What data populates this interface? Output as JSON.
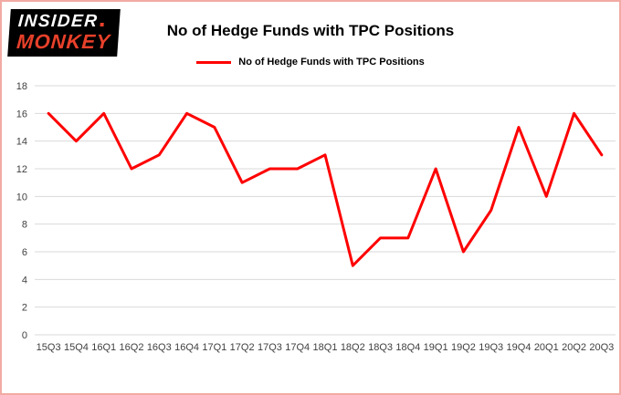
{
  "logo": {
    "line1": "INSIDER",
    "line2": "MONKEY"
  },
  "header": {
    "title": "No of Hedge Funds with TPC Positions"
  },
  "legend": {
    "label": "No of Hedge Funds with TPC Positions"
  },
  "colors": {
    "line": "#ff0000",
    "grid": "#d9d9d9",
    "axis_text": "#404040",
    "page_border": "#f2aaa4",
    "logo_bg": "#000000",
    "logo_accent": "#e8402a"
  },
  "chart_data": {
    "type": "line",
    "title": "No of Hedge Funds with TPC Positions",
    "categories": [
      "15Q3",
      "15Q4",
      "16Q1",
      "16Q2",
      "16Q3",
      "16Q4",
      "17Q1",
      "17Q2",
      "17Q3",
      "17Q4",
      "18Q1",
      "18Q2",
      "18Q3",
      "18Q4",
      "19Q1",
      "19Q2",
      "19Q3",
      "19Q4",
      "20Q1",
      "20Q2",
      "20Q3"
    ],
    "series": [
      {
        "name": "No of Hedge Funds with TPC Positions",
        "color": "#ff0000",
        "values": [
          16,
          14,
          16,
          12,
          13,
          16,
          15,
          11,
          12,
          12,
          13,
          5,
          7,
          7,
          12,
          6,
          9,
          15,
          10,
          16,
          13
        ]
      }
    ],
    "xlabel": "",
    "ylabel": "",
    "ylim": [
      0,
      18
    ],
    "ytick_step": 2,
    "grid": true,
    "legend_position": "top-center"
  }
}
